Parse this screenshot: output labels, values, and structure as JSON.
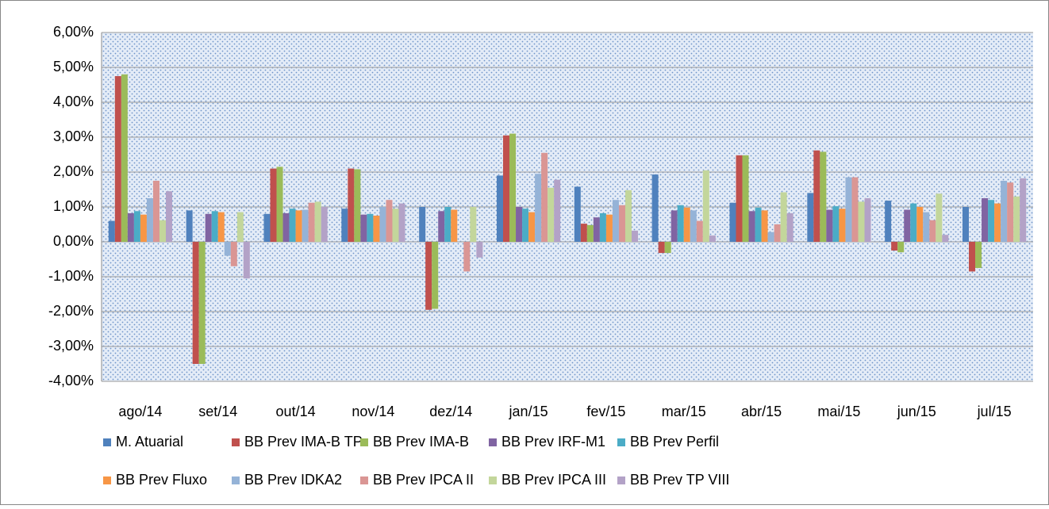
{
  "chart_data": {
    "type": "bar",
    "categories": [
      "ago/14",
      "set/14",
      "out/14",
      "nov/14",
      "dez/14",
      "jan/15",
      "fev/15",
      "mar/15",
      "abr/15",
      "mai/15",
      "jun/15",
      "jul/15"
    ],
    "series": [
      {
        "name": "M. Atuarial",
        "color": "#4F81BD",
        "values": [
          0.6,
          0.9,
          0.8,
          0.95,
          1.0,
          1.9,
          1.58,
          1.93,
          1.12,
          1.4,
          1.18,
          1.0
        ]
      },
      {
        "name": "BB Prev IMA-B TP",
        "color": "#C0504D",
        "values": [
          4.75,
          -3.5,
          2.1,
          2.1,
          -1.95,
          3.05,
          0.52,
          -0.32,
          2.48,
          2.62,
          -0.25,
          -0.85
        ]
      },
      {
        "name": "BB Prev IMA-B",
        "color": "#9BBB59",
        "values": [
          4.8,
          -3.5,
          2.15,
          2.08,
          -1.92,
          3.1,
          0.48,
          -0.32,
          2.48,
          2.58,
          -0.3,
          -0.75
        ]
      },
      {
        "name": "BB Prev IRF-M1",
        "color": "#8064A2",
        "values": [
          0.82,
          0.8,
          0.82,
          0.78,
          0.88,
          1.0,
          0.7,
          0.9,
          0.88,
          0.92,
          0.92,
          1.25
        ]
      },
      {
        "name": "BB Prev Perfil",
        "color": "#4BACC6",
        "values": [
          0.88,
          0.88,
          0.95,
          0.8,
          1.0,
          0.95,
          0.82,
          1.05,
          0.98,
          1.02,
          1.1,
          1.2
        ]
      },
      {
        "name": "BB Prev Fluxo",
        "color": "#F79646",
        "values": [
          0.78,
          0.85,
          0.9,
          0.75,
          0.92,
          0.85,
          0.78,
          0.98,
          0.9,
          0.95,
          1.0,
          1.1
        ]
      },
      {
        "name": "BB Prev IDKA2",
        "color": "#95B3D7",
        "values": [
          1.25,
          -0.4,
          0.92,
          1.0,
          0,
          1.95,
          1.2,
          0.9,
          0.28,
          1.85,
          0.85,
          1.75
        ]
      },
      {
        "name": "BB Prev IPCA II",
        "color": "#DA9694",
        "values": [
          1.75,
          -0.7,
          1.12,
          1.2,
          -0.85,
          2.55,
          1.05,
          0.6,
          0.5,
          1.85,
          0.62,
          1.7
        ]
      },
      {
        "name": "BB Prev IPCA III",
        "color": "#C3D69B",
        "values": [
          0.62,
          0.85,
          1.15,
          0.95,
          1.0,
          1.55,
          1.48,
          2.05,
          1.42,
          1.15,
          1.38,
          1.3
        ]
      },
      {
        "name": "BB Prev TP VIII",
        "color": "#B3A2C7",
        "values": [
          1.45,
          -1.05,
          1.0,
          1.1,
          -0.45,
          1.78,
          0.32,
          0.18,
          0.82,
          1.25,
          0.2,
          1.82
        ]
      }
    ],
    "ylim": [
      -4,
      6
    ],
    "yticks": [
      {
        "value": -4,
        "label": "-4,00%"
      },
      {
        "value": -3,
        "label": "-3,00%"
      },
      {
        "value": -2,
        "label": "-2,00%"
      },
      {
        "value": -1,
        "label": "-1,00%"
      },
      {
        "value": 0,
        "label": "0,00%"
      },
      {
        "value": 1,
        "label": "1,00%"
      },
      {
        "value": 2,
        "label": "2,00%"
      },
      {
        "value": 3,
        "label": "3,00%"
      },
      {
        "value": 4,
        "label": "4,00%"
      },
      {
        "value": 5,
        "label": "5,00%"
      },
      {
        "value": 6,
        "label": "6,00%"
      }
    ],
    "grid": true
  }
}
